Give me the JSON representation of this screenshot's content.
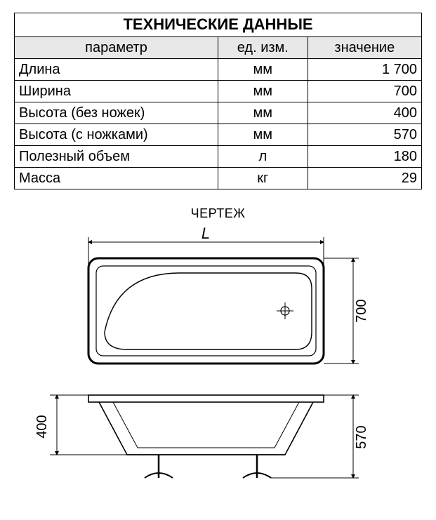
{
  "table": {
    "title": "ТЕХНИЧЕСКИЕ ДАННЫЕ",
    "headers": {
      "param": "параметр",
      "unit": "ед. изм.",
      "value": "значение"
    },
    "col_widths_pct": [
      50,
      22,
      28
    ],
    "rows": [
      {
        "param": "Длина",
        "unit": "мм",
        "value": "1 700"
      },
      {
        "param": "Ширина",
        "unit": "мм",
        "value": "700"
      },
      {
        "param": "Высота (без ножек)",
        "unit": "мм",
        "value": "400"
      },
      {
        "param": "Высота (с ножками)",
        "unit": "мм",
        "value": "570"
      },
      {
        "param": "Полезный объем",
        "unit": "л",
        "value": "180"
      },
      {
        "param": "Масса",
        "unit": "кг",
        "value": "29"
      }
    ],
    "title_fontsize": 22,
    "header_bg": "#e8e8e8",
    "cell_fontsize": 20,
    "border_color": "#000000"
  },
  "drawing": {
    "label": "ЧЕРТЕЖ",
    "label_fontsize": 18,
    "dim_labels": {
      "L": "L",
      "width": "700",
      "h_body": "400",
      "h_total": "570"
    },
    "stroke": "#000000",
    "stroke_width": 1.6,
    "stroke_thin": 1,
    "fontsize": 20,
    "fontsize_italic": 22
  }
}
